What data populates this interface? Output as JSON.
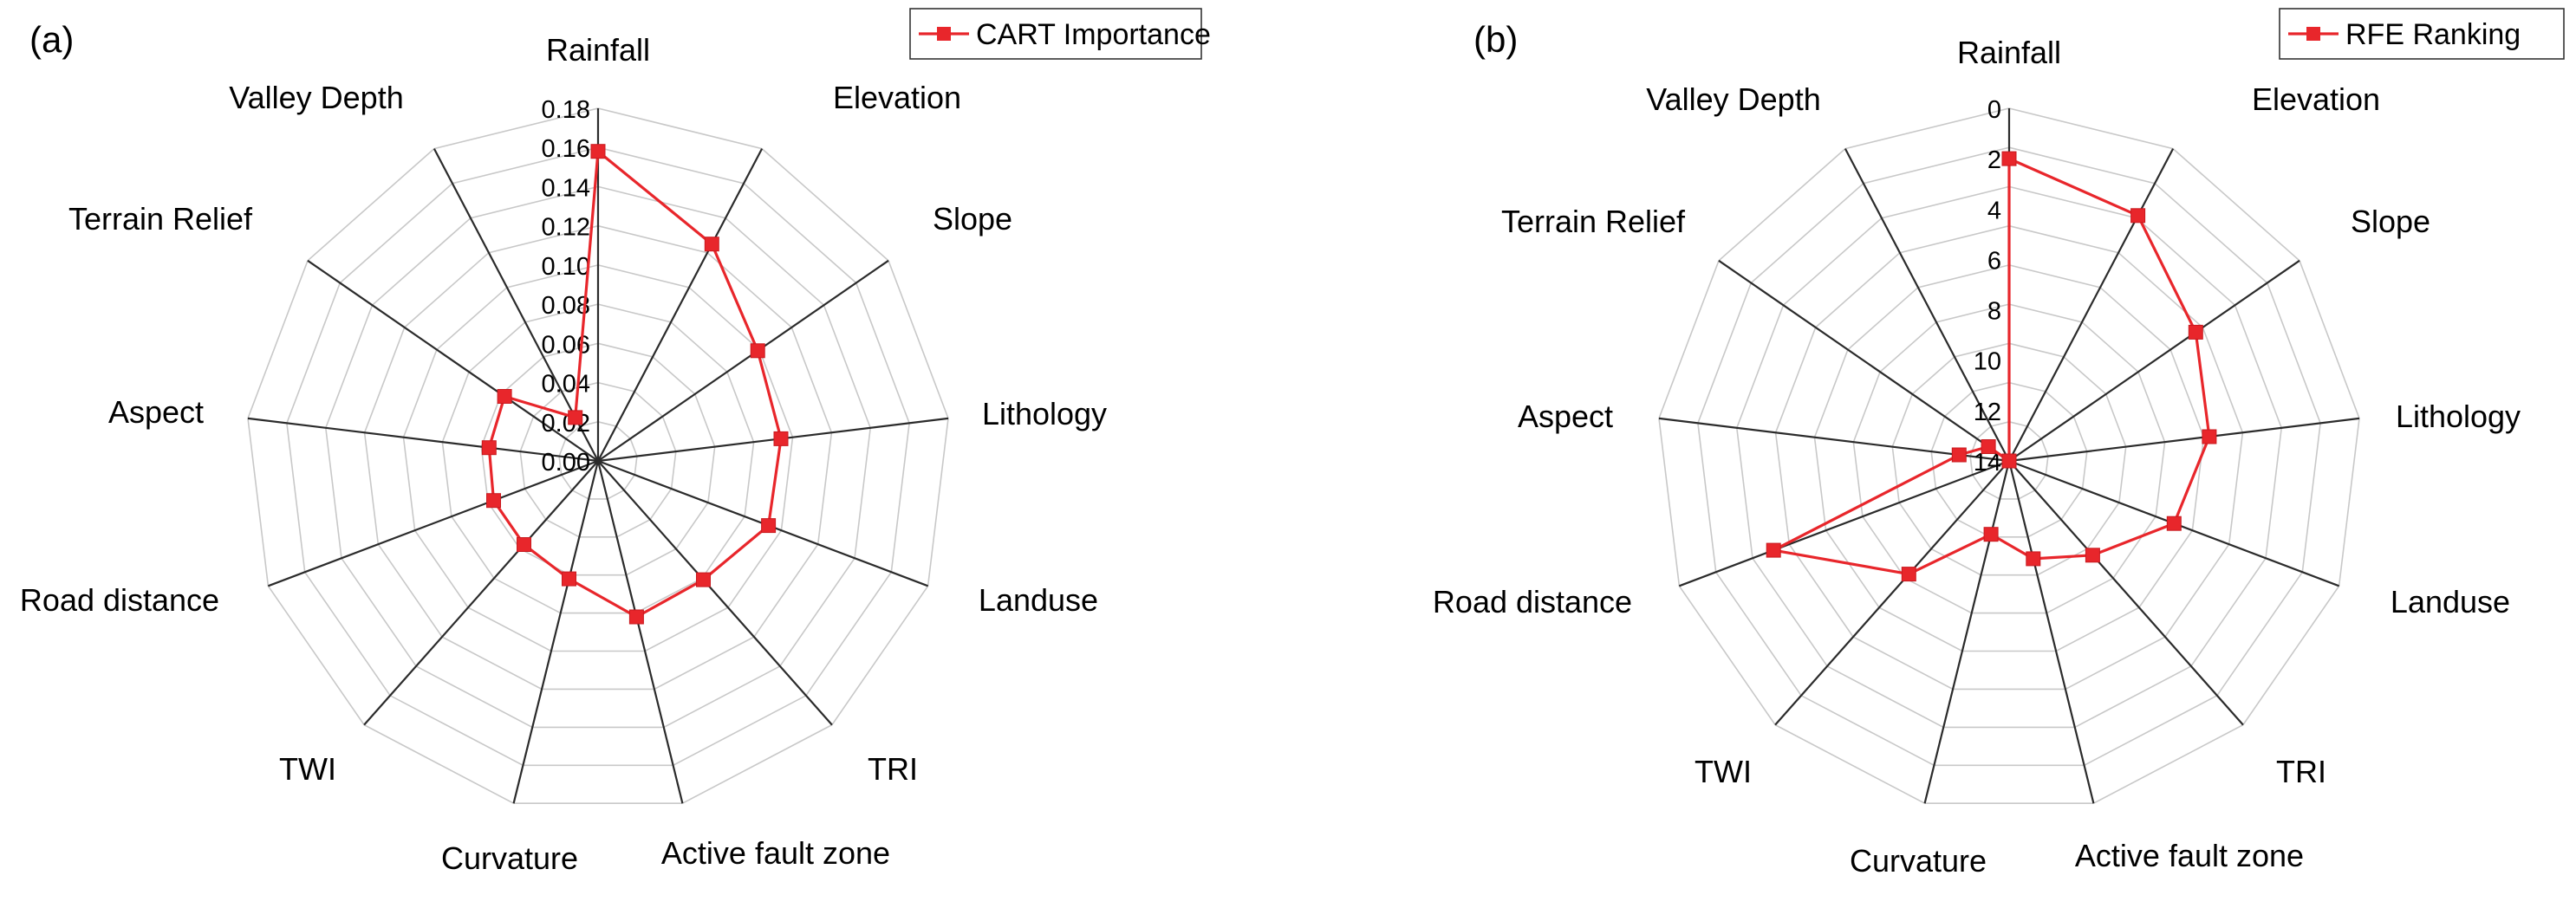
{
  "chart_data": [
    {
      "panel": "(a)",
      "type": "radar",
      "legend": "CART Importance",
      "legend_position": "top-right",
      "axes": [
        "Rainfall",
        "Elevation",
        "Slope",
        "Lithology",
        "Landuse",
        "TRI",
        "Active fault zone",
        "Curvature",
        "TWI",
        "Road distance",
        "Aspect",
        "Terrain Relief",
        "Valley Depth"
      ],
      "radial_range": [
        0,
        0.18
      ],
      "radial_reversed": false,
      "ticks": [
        0.0,
        0.02,
        0.04,
        0.06,
        0.08,
        0.1,
        0.12,
        0.14,
        0.16,
        0.18
      ],
      "tick_labels": [
        "0.00",
        "0.02",
        "0.04",
        "0.06",
        "0.08",
        "0.10",
        "0.12",
        "0.14",
        "0.16",
        "0.18"
      ],
      "values": [
        0.158,
        0.125,
        0.099,
        0.094,
        0.093,
        0.081,
        0.082,
        0.062,
        0.057,
        0.057,
        0.056,
        0.058,
        0.025
      ],
      "color": "#e8262b",
      "grid": true
    },
    {
      "panel": "(b)",
      "type": "radar",
      "legend": "RFE Ranking",
      "legend_position": "top-right",
      "axes": [
        "Rainfall",
        "Elevation",
        "Slope",
        "Lithology",
        "Landuse",
        "TRI",
        "Active fault zone",
        "Curvature",
        "TWI",
        "Road distance",
        "Aspect",
        "Terrain Relief",
        "Valley Depth"
      ],
      "radial_range": [
        0,
        14
      ],
      "radial_reversed": true,
      "ticks": [
        0,
        2,
        4,
        6,
        8,
        10,
        12,
        14
      ],
      "tick_labels": [
        "0",
        "2",
        "4",
        "6",
        "8",
        "10",
        "12",
        "14"
      ],
      "values": [
        2,
        3,
        5,
        6,
        7,
        9,
        10,
        11,
        8,
        4,
        12,
        13,
        14
      ],
      "color": "#e8262b",
      "grid": true
    }
  ]
}
